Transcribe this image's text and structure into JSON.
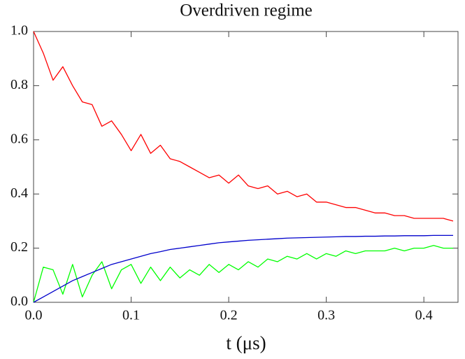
{
  "chart_data": {
    "type": "line",
    "title": "Overdriven regime",
    "x_label": "t (μs)",
    "x": [
      0,
      0.01,
      0.02,
      0.03,
      0.04,
      0.05,
      0.06,
      0.07,
      0.08,
      0.09,
      0.1,
      0.11,
      0.12,
      0.13,
      0.14,
      0.15,
      0.16,
      0.17,
      0.18,
      0.19,
      0.2,
      0.21,
      0.22,
      0.23,
      0.24,
      0.25,
      0.26,
      0.27,
      0.28,
      0.29,
      0.3,
      0.31,
      0.32,
      0.33,
      0.34,
      0.35,
      0.36,
      0.37,
      0.38,
      0.39,
      0.4,
      0.41,
      0.42,
      0.43
    ],
    "series": [
      {
        "color": "#ff0000",
        "values": [
          1.0,
          0.92,
          0.82,
          0.87,
          0.8,
          0.74,
          0.73,
          0.65,
          0.67,
          0.62,
          0.56,
          0.62,
          0.55,
          0.58,
          0.53,
          0.52,
          0.5,
          0.48,
          0.46,
          0.47,
          0.44,
          0.47,
          0.43,
          0.42,
          0.43,
          0.4,
          0.41,
          0.39,
          0.4,
          0.37,
          0.37,
          0.36,
          0.35,
          0.35,
          0.34,
          0.33,
          0.33,
          0.32,
          0.32,
          0.31,
          0.31,
          0.31,
          0.31,
          0.3
        ]
      },
      {
        "color": "#00ff00",
        "values": [
          0,
          0.13,
          0.12,
          0.03,
          0.14,
          0.02,
          0.1,
          0.15,
          0.05,
          0.12,
          0.14,
          0.07,
          0.13,
          0.08,
          0.13,
          0.09,
          0.12,
          0.1,
          0.14,
          0.11,
          0.14,
          0.12,
          0.15,
          0.13,
          0.16,
          0.15,
          0.17,
          0.16,
          0.18,
          0.16,
          0.18,
          0.17,
          0.19,
          0.18,
          0.19,
          0.19,
          0.19,
          0.2,
          0.19,
          0.2,
          0.2,
          0.21,
          0.2,
          0.2
        ]
      },
      {
        "color": "#0000cc",
        "values": [
          0,
          0.02,
          0.04,
          0.06,
          0.08,
          0.095,
          0.11,
          0.125,
          0.14,
          0.15,
          0.16,
          0.17,
          0.18,
          0.187,
          0.195,
          0.2,
          0.205,
          0.21,
          0.215,
          0.22,
          0.223,
          0.226,
          0.229,
          0.231,
          0.233,
          0.235,
          0.237,
          0.238,
          0.239,
          0.24,
          0.241,
          0.242,
          0.243,
          0.243,
          0.244,
          0.244,
          0.245,
          0.245,
          0.246,
          0.246,
          0.246,
          0.247,
          0.247,
          0.247
        ]
      }
    ],
    "xlim": [
      0,
      0.435
    ],
    "ylim": [
      0,
      1
    ],
    "xticks": [
      {
        "value": 0,
        "label": "0.0"
      },
      0.1,
      0.2,
      0.3,
      0.4
    ],
    "yticks": [
      {
        "value": 0,
        "label": "0.0"
      },
      0.2,
      0.4,
      0.6,
      0.8,
      {
        "value": 1,
        "label": "1.0"
      }
    ],
    "grid": false
  }
}
